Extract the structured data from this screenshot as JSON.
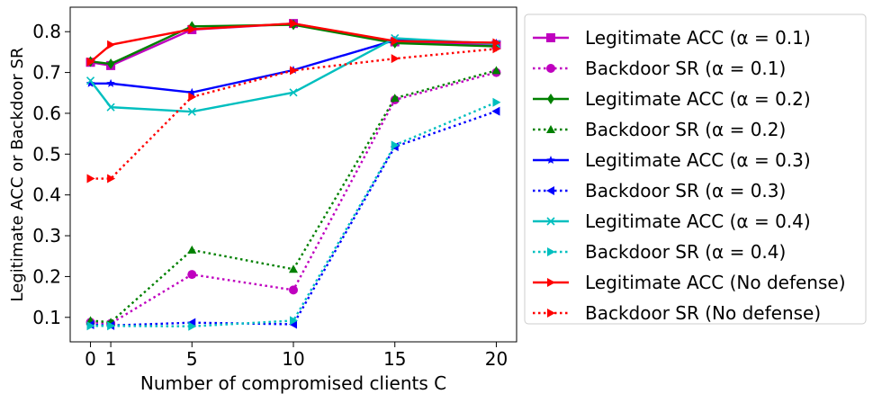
{
  "chart_data": {
    "type": "line",
    "title": "",
    "xlabel": "Number of compromised clients C",
    "ylabel": "Legitimate ACC or Backdoor SR",
    "x": [
      0,
      1,
      5,
      10,
      15,
      20
    ],
    "xticks": [
      "0",
      "1",
      "5",
      "10",
      "15",
      "20"
    ],
    "yticks": [
      "0.1",
      "0.2",
      "0.3",
      "0.4",
      "0.5",
      "0.6",
      "0.7",
      "0.8"
    ],
    "xlim": [
      -1,
      21
    ],
    "ylim": [
      0.04,
      0.86
    ],
    "grid": false,
    "legend_position": "right, outside plot",
    "series": [
      {
        "name": "Legitimate ACC (α = 0.1)",
        "color": "#bf00bf",
        "line": "solid",
        "marker": "square",
        "values": [
          0.725,
          0.717,
          0.805,
          0.82,
          0.775,
          0.768
        ]
      },
      {
        "name": "Backdoor SR (α = 0.1)",
        "color": "#bf00bf",
        "line": "dotted",
        "marker": "circle",
        "values": [
          0.088,
          0.085,
          0.205,
          0.167,
          0.633,
          0.7
        ]
      },
      {
        "name": "Legitimate ACC (α = 0.2)",
        "color": "#008000",
        "line": "solid",
        "marker": "diamond",
        "values": [
          0.727,
          0.721,
          0.813,
          0.817,
          0.772,
          0.764
        ]
      },
      {
        "name": "Backdoor SR (α = 0.2)",
        "color": "#008000",
        "line": "dotted",
        "marker": "triangle-up",
        "values": [
          0.092,
          0.088,
          0.265,
          0.218,
          0.637,
          0.705
        ]
      },
      {
        "name": "Legitimate ACC (α = 0.3)",
        "color": "#0000ff",
        "line": "solid",
        "marker": "star",
        "values": [
          0.673,
          0.673,
          0.651,
          0.706,
          0.779,
          0.772
        ]
      },
      {
        "name": "Backdoor SR (α = 0.3)",
        "color": "#0000ff",
        "line": "dotted",
        "marker": "triangle-left",
        "values": [
          0.082,
          0.08,
          0.087,
          0.083,
          0.518,
          0.605
        ]
      },
      {
        "name": "Legitimate ACC (α = 0.4)",
        "color": "#00bfbf",
        "line": "solid",
        "marker": "x",
        "values": [
          0.68,
          0.615,
          0.604,
          0.651,
          0.784,
          0.77
        ]
      },
      {
        "name": "Backdoor SR (α = 0.4)",
        "color": "#00bfbf",
        "line": "dotted",
        "marker": "triangle-right",
        "values": [
          0.079,
          0.079,
          0.078,
          0.092,
          0.522,
          0.627
        ]
      },
      {
        "name": "Legitimate ACC (No defense)",
        "color": "#ff0000",
        "line": "solid",
        "marker": "triangle-right",
        "values": [
          0.726,
          0.768,
          0.806,
          0.82,
          0.777,
          0.773
        ]
      },
      {
        "name": "Backdoor SR (No defense)",
        "color": "#ff0000",
        "line": "dotted",
        "marker": "triangle-right",
        "values": [
          0.44,
          0.44,
          0.64,
          0.705,
          0.734,
          0.758
        ]
      }
    ]
  }
}
